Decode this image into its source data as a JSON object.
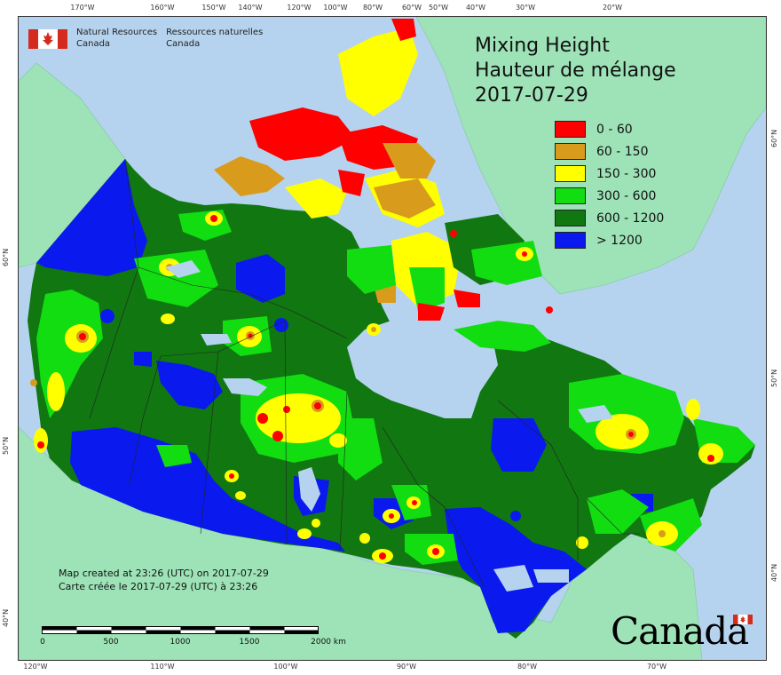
{
  "agency": {
    "name_en_line1": "Natural Resources",
    "name_en_line2": "Canada",
    "name_fr_line1": "Ressources naturelles",
    "name_fr_line2": "Canada"
  },
  "title": {
    "line1": "Mixing Height",
    "line2": "Hauteur de mélange",
    "date": "2017-07-29"
  },
  "legend": [
    {
      "label": "0 - 60",
      "color": "#ff0000"
    },
    {
      "label": "60 - 150",
      "color": "#d99b1c"
    },
    {
      "label": "150 - 300",
      "color": "#ffff00"
    },
    {
      "label": "300 - 600",
      "color": "#11dd11"
    },
    {
      "label": "600 - 1200",
      "color": "#117711"
    },
    {
      "label": "> 1200",
      "color": "#0a1aee"
    }
  ],
  "top_ticks": [
    "170°W",
    "160°W",
    "150°W",
    "140°W",
    "120°W",
    "100°W",
    "80°W",
    "60°W",
    "50°W",
    "40°W",
    "30°W",
    "20°W"
  ],
  "bottom_ticks": [
    "120°W",
    "110°W",
    "100°W",
    "90°W",
    "80°W",
    "70°W"
  ],
  "left_ticks": [
    "60°N",
    "50°N",
    "40°N"
  ],
  "right_ticks": [
    "60°N",
    "50°N",
    "40°N"
  ],
  "created_en": "Map created at 23:26 (UTC) on 2017-07-29",
  "created_fr": "Carte créée le 2017-07-29 (UTC) à 23:26",
  "scale": {
    "labels": [
      "0",
      "500",
      "1000",
      "1500",
      "2000 km"
    ]
  },
  "wordmark": "Canada",
  "colors": {
    "ocean": "#b5d3ee",
    "foreign_land": "#9ee3b8",
    "water": "#b5d3ee"
  }
}
